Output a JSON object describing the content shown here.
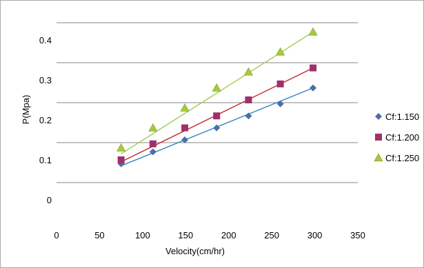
{
  "chart_data": {
    "type": "scatter",
    "title": "",
    "xlabel": "Velocity(cm/hr)",
    "ylabel": "P(Mpa)",
    "xlim": [
      0,
      350
    ],
    "ylim": [
      0,
      0.44
    ],
    "x_ticks": [
      0,
      50,
      100,
      150,
      200,
      250,
      300,
      350
    ],
    "x_tick_labels": [
      "0",
      "50",
      "100",
      "150",
      "200",
      "250",
      "300",
      "350"
    ],
    "y_tick_labels": [
      {
        "label": "0.4",
        "value": 0.4
      },
      {
        "label": "0.3",
        "value": 0.3
      },
      {
        "label": "0.2",
        "value": 0.2
      },
      {
        "label": "0.1",
        "value": 0.1
      },
      {
        "label": "0",
        "value": 0.0
      }
    ],
    "gridlines_y": [
      0.043,
      0.143,
      0.243,
      0.343,
      0.443
    ],
    "grid": true,
    "legend_position": "right",
    "x": [
      75,
      112,
      149,
      186,
      223,
      260,
      298
    ],
    "series": [
      {
        "name": "Cf:1.150",
        "marker": "diamond",
        "color": "#4a6fa8",
        "line_color": "#2f83c4",
        "values": [
          0.09,
          0.12,
          0.15,
          0.18,
          0.21,
          0.24,
          0.28
        ],
        "trend_y": [
          0.085,
          0.28
        ]
      },
      {
        "name": "Cf:1.200",
        "marker": "square",
        "color": "#a0306a",
        "line_color": "#c0282e",
        "values": [
          0.1,
          0.14,
          0.18,
          0.21,
          0.25,
          0.29,
          0.33
        ],
        "trend_y": [
          0.095,
          0.33
        ]
      },
      {
        "name": "Cf:1.250",
        "marker": "triangle",
        "color": "#a7c93a",
        "line_color": "#9ccf52",
        "values": [
          0.13,
          0.18,
          0.23,
          0.28,
          0.32,
          0.37,
          0.42
        ],
        "trend_y": [
          0.115,
          0.42
        ]
      }
    ]
  }
}
